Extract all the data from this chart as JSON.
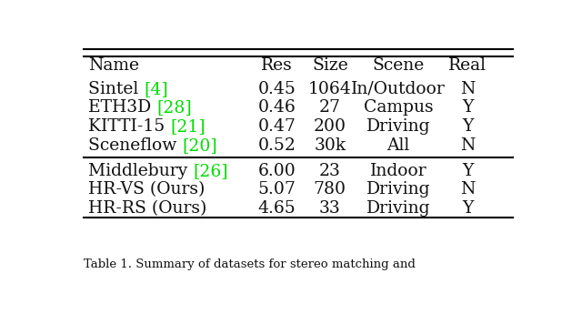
{
  "headers": [
    "Name",
    "Res",
    "Size",
    "Scene",
    "Real"
  ],
  "rows_group1": [
    {
      "name": "Sintel ",
      "ref": "[4]",
      "res": "0.45",
      "size": "1064",
      "scene": "In/Outdoor",
      "real": "N"
    },
    {
      "name": "ETH3D ",
      "ref": "[28]",
      "res": "0.46",
      "size": "27",
      "scene": "Campus",
      "real": "Y"
    },
    {
      "name": "KITTI-15 ",
      "ref": "[21]",
      "res": "0.47",
      "size": "200",
      "scene": "Driving",
      "real": "Y"
    },
    {
      "name": "Sceneflow ",
      "ref": "[20]",
      "res": "0.52",
      "size": "30k",
      "scene": "All",
      "real": "N"
    }
  ],
  "rows_group2": [
    {
      "name": "Middlebury ",
      "ref": "[26]",
      "res": "6.00",
      "size": "23",
      "scene": "Indoor",
      "real": "Y"
    },
    {
      "name": "HR-VS (Ours)",
      "ref": "",
      "res": "5.07",
      "size": "780",
      "scene": "Driving",
      "real": "N"
    },
    {
      "name": "HR-RS (Ours)",
      "ref": "",
      "res": "4.65",
      "size": "33",
      "scene": "Driving",
      "real": "Y"
    }
  ],
  "caption": "Table 1. Summary of datasets for stereo matching and",
  "ref_color": "#00dd00",
  "text_color": "#111111",
  "bg_color": "#ffffff",
  "fontsize": 13.5
}
